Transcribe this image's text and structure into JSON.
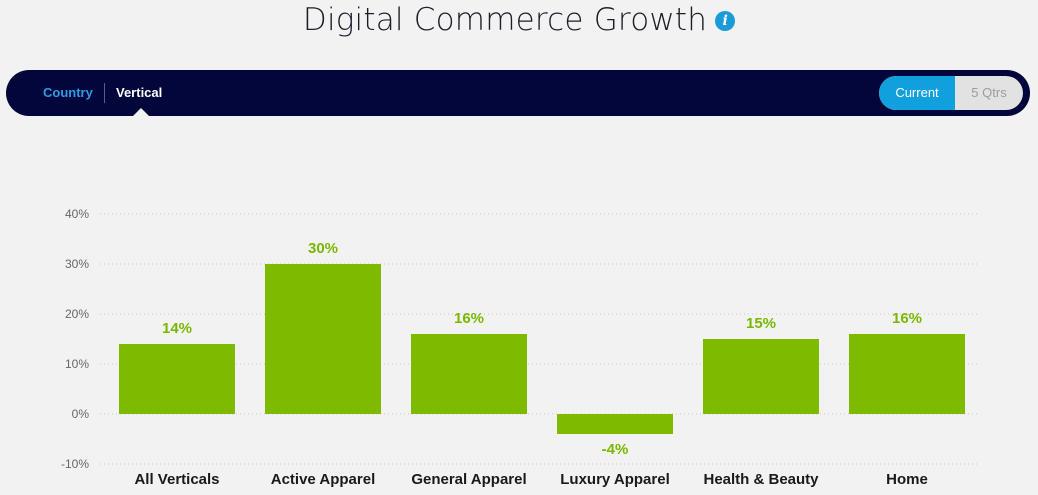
{
  "header": {
    "title": "Digital Commerce Growth",
    "info_icon": "info-icon",
    "info_symbol": "i"
  },
  "nav": {
    "tabs": [
      {
        "label": "Country",
        "active": false
      },
      {
        "label": "Vertical",
        "active": true
      }
    ],
    "toggle": {
      "options": [
        "Current",
        "5 Qtrs"
      ],
      "selected": "Current"
    }
  },
  "colors": {
    "bar": "#7dba00",
    "value_label": "#79b800",
    "navbar_bg": "#02063b",
    "accent": "#0fa0dd"
  },
  "chart_data": {
    "type": "bar",
    "categories": [
      "All Verticals",
      "Active Apparel",
      "General Apparel",
      "Luxury Apparel",
      "Health & Beauty",
      "Home"
    ],
    "values": [
      14,
      30,
      16,
      -4,
      15,
      16
    ],
    "value_labels": [
      "14%",
      "30%",
      "16%",
      "-4%",
      "15%",
      "16%"
    ],
    "yticks": [
      "40%",
      "30%",
      "20%",
      "10%",
      "0%",
      "-10%"
    ],
    "ytick_values": [
      40,
      30,
      20,
      10,
      0,
      -10
    ],
    "ylim": [
      -10,
      40
    ],
    "grid": true,
    "xlabel": "",
    "ylabel": ""
  }
}
